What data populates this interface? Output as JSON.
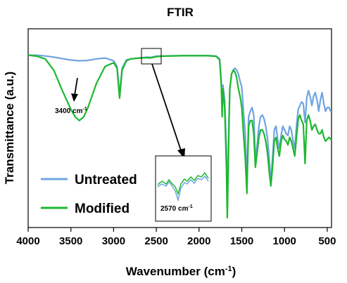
{
  "chart_data": {
    "type": "line",
    "title": "FTIR",
    "xlabel": "Wavenumber (cm",
    "xlabel_sup": "-1",
    "xlabel_end": ")",
    "ylabel": "Transmittance (a.u.)",
    "xlim": [
      4000,
      450
    ],
    "x_reversed": true,
    "x_ticks": [
      4000,
      3500,
      3000,
      2500,
      2000,
      1500,
      1000,
      500
    ],
    "x_tick_labels": [
      "4000",
      "3500",
      "3000",
      "2500",
      "2000",
      "1500",
      "1000",
      "500"
    ],
    "ylim": [
      0,
      100
    ],
    "y_ticks_shown": false,
    "grid": false,
    "legend_position": "bottom-left",
    "series": [
      {
        "name": "Untreated",
        "color": "#6fa4e2",
        "x": [
          4000,
          3900,
          3800,
          3700,
          3600,
          3500,
          3400,
          3300,
          3200,
          3100,
          3000,
          2960,
          2930,
          2900,
          2850,
          2800,
          2700,
          2600,
          2570,
          2500,
          2400,
          2300,
          2200,
          2100,
          2000,
          1900,
          1800,
          1760,
          1740,
          1730,
          1720,
          1700,
          1680,
          1670,
          1660,
          1650,
          1640,
          1620,
          1600,
          1580,
          1560,
          1540,
          1520,
          1500,
          1480,
          1460,
          1440,
          1430,
          1420,
          1400,
          1380,
          1360,
          1340,
          1320,
          1300,
          1280,
          1260,
          1240,
          1220,
          1200,
          1180,
          1160,
          1140,
          1120,
          1100,
          1080,
          1060,
          1040,
          1020,
          1000,
          980,
          960,
          940,
          920,
          900,
          880,
          860,
          840,
          820,
          800,
          780,
          760,
          740,
          720,
          700,
          680,
          660,
          640,
          620,
          600,
          580,
          560,
          540,
          520,
          500,
          480,
          460,
          450
        ],
        "y": [
          90,
          90,
          89.6,
          89,
          88.2,
          87.4,
          87,
          87.2,
          88,
          88.5,
          87,
          84,
          69,
          83,
          87.5,
          88,
          88.5,
          89,
          88.8,
          89.5,
          89.6,
          89.7,
          89.8,
          89.8,
          89.8,
          89.8,
          89.5,
          88,
          76,
          61,
          74,
          66,
          40,
          14,
          30,
          55,
          72,
          80,
          82,
          83,
          82,
          80,
          76,
          73,
          60,
          48,
          22,
          40,
          57,
          60,
          62,
          58,
          34,
          42,
          52,
          57,
          58,
          56,
          52,
          46,
          35,
          22,
          35,
          50,
          52,
          45,
          40,
          47,
          52,
          50,
          48,
          47,
          52,
          50,
          44,
          40,
          52,
          61,
          63,
          65,
          64,
          54,
          67,
          71,
          68,
          63,
          68,
          70,
          66,
          60,
          66,
          70,
          64,
          60,
          62,
          62,
          60,
          60
        ]
      },
      {
        "name": "Modified",
        "color": "#1cb82f",
        "x": [
          4000,
          3900,
          3800,
          3700,
          3600,
          3500,
          3450,
          3400,
          3350,
          3300,
          3200,
          3100,
          3000,
          2960,
          2930,
          2900,
          2850,
          2800,
          2700,
          2600,
          2570,
          2500,
          2400,
          2300,
          2200,
          2100,
          2000,
          1900,
          1800,
          1760,
          1740,
          1730,
          1720,
          1700,
          1680,
          1670,
          1660,
          1650,
          1640,
          1620,
          1600,
          1580,
          1560,
          1540,
          1520,
          1500,
          1480,
          1460,
          1440,
          1430,
          1420,
          1400,
          1380,
          1360,
          1340,
          1320,
          1300,
          1280,
          1260,
          1240,
          1220,
          1200,
          1180,
          1160,
          1140,
          1120,
          1100,
          1080,
          1060,
          1040,
          1020,
          1000,
          980,
          960,
          940,
          920,
          900,
          880,
          860,
          840,
          820,
          800,
          780,
          760,
          740,
          720,
          700,
          680,
          660,
          640,
          620,
          600,
          580,
          560,
          540,
          520,
          500,
          480,
          460,
          450
        ],
        "y": [
          90,
          89.5,
          88,
          82,
          71,
          61,
          57,
          55,
          57,
          62,
          75,
          84,
          86,
          83,
          67,
          82,
          87,
          88,
          88.5,
          88.7,
          88.5,
          89.2,
          89.5,
          89.6,
          89.7,
          89.7,
          89.7,
          89.7,
          89.4,
          87.5,
          74,
          57,
          72,
          62,
          30,
          3,
          25,
          52,
          72,
          80,
          82,
          81,
          78,
          72,
          68,
          62,
          48,
          35,
          16,
          35,
          52,
          55,
          55,
          48,
          30,
          38,
          46,
          50,
          50,
          48,
          44,
          38,
          28,
          20,
          30,
          44,
          46,
          40,
          36,
          44,
          47,
          45,
          44,
          42,
          46,
          44,
          40,
          36,
          46,
          56,
          58,
          55,
          53,
          32,
          55,
          58,
          55,
          50,
          52,
          53,
          50,
          48,
          48,
          50,
          46,
          44,
          45,
          46,
          45,
          45
        ]
      }
    ],
    "annotations": [
      {
        "text": "3400 cm",
        "sup": "-1",
        "x": 3400
      },
      {
        "text": "2570 cm",
        "sup": "-1",
        "x": 2570
      }
    ]
  },
  "colors": {
    "untreated": "#6fa4e2",
    "modified": "#1cb82f",
    "axis": "#000000"
  }
}
